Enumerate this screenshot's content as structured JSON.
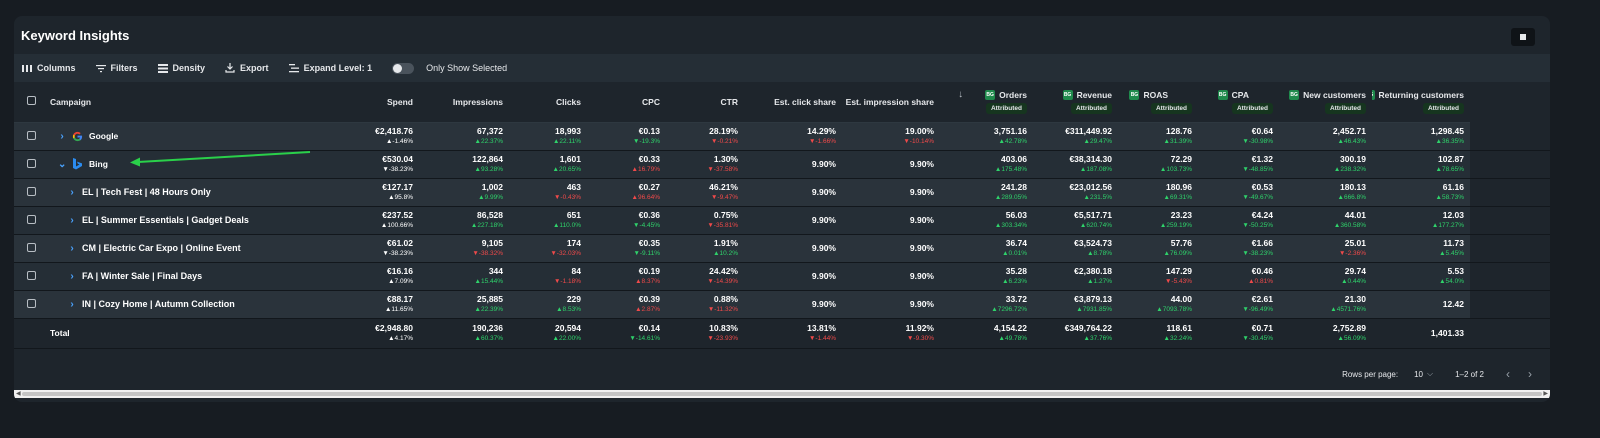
{
  "title": "Keyword Insights",
  "toolbar": {
    "columns": "Columns",
    "filters": "Filters",
    "density": "Density",
    "export": "Export",
    "expand": "Expand Level: 1",
    "only_selected": "Only Show Selected"
  },
  "columns": {
    "campaign": "Campaign",
    "spend": "Spend",
    "impressions": "Impressions",
    "clicks": "Clicks",
    "cpc": "CPC",
    "ctr": "CTR",
    "click_share": "Est. click share",
    "impr_share": "Est. impression share",
    "orders": "Orders",
    "revenue": "Revenue",
    "roas": "ROAS",
    "cpa": "CPA",
    "new_customers": "New customers",
    "returning": "Returning customers",
    "attributed": "Attributed",
    "bg_icon": "BG"
  },
  "rows": [
    {
      "name": "Google",
      "icon": "google-icon",
      "spend": [
        "€2,418.76",
        "▲-1.46%",
        "neutral"
      ],
      "impr": [
        "67,372",
        "▲22.37%",
        "up"
      ],
      "clicks": [
        "18,993",
        "▲22.11%",
        "up"
      ],
      "cpc": [
        "€0.13",
        "▼-19.3%",
        "up"
      ],
      "ctr": [
        "28.19%",
        "▼-0.21%",
        "down"
      ],
      "cs": [
        "14.29%",
        "▼-1.66%",
        "down"
      ],
      "is": [
        "19.00%",
        "▼-10.14%",
        "down"
      ],
      "orders": [
        "3,751.16",
        "▲42.78%",
        "up"
      ],
      "revenue": [
        "€311,449.92",
        "▲29.47%",
        "up"
      ],
      "roas": [
        "128.76",
        "▲31.39%",
        "up"
      ],
      "cpa": [
        "€0.64",
        "▼-30.98%",
        "up"
      ],
      "newc": [
        "2,452.71",
        "▲46.43%",
        "up"
      ],
      "ret": [
        "1,298.45",
        "▲36.35%",
        "up"
      ]
    },
    {
      "name": "Bing",
      "icon": "bing-icon",
      "spend": [
        "€530.04",
        "▼-38.23%",
        "neutral"
      ],
      "impr": [
        "122,864",
        "▲93.28%",
        "up"
      ],
      "clicks": [
        "1,601",
        "▲20.65%",
        "up"
      ],
      "cpc": [
        "€0.33",
        "▲16.79%",
        "down"
      ],
      "ctr": [
        "1.30%",
        "▼-37.58%",
        "down"
      ],
      "cs": [
        "9.90%",
        "",
        "up"
      ],
      "is": [
        "9.90%",
        "",
        "up"
      ],
      "orders": [
        "403.06",
        "▲175.48%",
        "up"
      ],
      "revenue": [
        "€38,314.30",
        "▲187.08%",
        "up"
      ],
      "roas": [
        "72.29",
        "▲103.73%",
        "up"
      ],
      "cpa": [
        "€1.32",
        "▼-48.85%",
        "up"
      ],
      "newc": [
        "300.19",
        "▲238.32%",
        "up"
      ],
      "ret": [
        "102.87",
        "▲78.65%",
        "up"
      ]
    },
    {
      "name": "EL | Tech Fest | 48 Hours Only",
      "spend": [
        "€127.17",
        "▲95.8%",
        "neutral"
      ],
      "impr": [
        "1,002",
        "▲9.99%",
        "up"
      ],
      "clicks": [
        "463",
        "▼-0.43%",
        "down"
      ],
      "cpc": [
        "€0.27",
        "▲96.64%",
        "down"
      ],
      "ctr": [
        "46.21%",
        "▼-9.47%",
        "down"
      ],
      "cs": [
        "9.90%",
        "",
        "up"
      ],
      "is": [
        "9.90%",
        "",
        "up"
      ],
      "orders": [
        "241.28",
        "▲289.05%",
        "up"
      ],
      "revenue": [
        "€23,012.56",
        "▲231.5%",
        "up"
      ],
      "roas": [
        "180.96",
        "▲69.31%",
        "up"
      ],
      "cpa": [
        "€0.53",
        "▼-49.67%",
        "up"
      ],
      "newc": [
        "180.13",
        "▲666.8%",
        "up"
      ],
      "ret": [
        "61.16",
        "▲58.73%",
        "up"
      ]
    },
    {
      "name": "EL | Summer Essentials | Gadget Deals",
      "spend": [
        "€237.52",
        "▲100.66%",
        "neutral"
      ],
      "impr": [
        "86,528",
        "▲227.18%",
        "up"
      ],
      "clicks": [
        "651",
        "▲110.0%",
        "up"
      ],
      "cpc": [
        "€0.36",
        "▼-4.45%",
        "up"
      ],
      "ctr": [
        "0.75%",
        "▼-35.81%",
        "down"
      ],
      "cs": [
        "9.90%",
        "",
        "up"
      ],
      "is": [
        "9.90%",
        "",
        "up"
      ],
      "orders": [
        "56.03",
        "▲303.34%",
        "up"
      ],
      "revenue": [
        "€5,517.71",
        "▲620.74%",
        "up"
      ],
      "roas": [
        "23.23",
        "▲259.19%",
        "up"
      ],
      "cpa": [
        "€4.24",
        "▼-50.25%",
        "up"
      ],
      "newc": [
        "44.01",
        "▲360.58%",
        "up"
      ],
      "ret": [
        "12.03",
        "▲177.27%",
        "up"
      ]
    },
    {
      "name": "CM | Electric Car Expo | Online Event",
      "spend": [
        "€61.02",
        "▼-38.23%",
        "neutral"
      ],
      "impr": [
        "9,105",
        "▼-38.32%",
        "down"
      ],
      "clicks": [
        "174",
        "▼-32.03%",
        "down"
      ],
      "cpc": [
        "€0.35",
        "▼-9.11%",
        "up"
      ],
      "ctr": [
        "1.91%",
        "▲10.2%",
        "up"
      ],
      "cs": [
        "9.90%",
        "",
        "up"
      ],
      "is": [
        "9.90%",
        "",
        "up"
      ],
      "orders": [
        "36.74",
        "▲0.01%",
        "up"
      ],
      "revenue": [
        "€3,524.73",
        "▲8.78%",
        "up"
      ],
      "roas": [
        "57.76",
        "▲76.09%",
        "up"
      ],
      "cpa": [
        "€1.66",
        "▼-38.23%",
        "up"
      ],
      "newc": [
        "25.01",
        "▼-2.36%",
        "down"
      ],
      "ret": [
        "11.73",
        "▲5.45%",
        "up"
      ]
    },
    {
      "name": "FA | Winter Sale | Final Days",
      "spend": [
        "€16.16",
        "▲7.09%",
        "neutral"
      ],
      "impr": [
        "344",
        "▲15.44%",
        "up"
      ],
      "clicks": [
        "84",
        "▼-1.18%",
        "down"
      ],
      "cpc": [
        "€0.19",
        "▲8.37%",
        "down"
      ],
      "ctr": [
        "24.42%",
        "▼-14.39%",
        "down"
      ],
      "cs": [
        "9.90%",
        "",
        "up"
      ],
      "is": [
        "9.90%",
        "",
        "up"
      ],
      "orders": [
        "35.28",
        "▲6.23%",
        "up"
      ],
      "revenue": [
        "€2,380.18",
        "▲1.27%",
        "up"
      ],
      "roas": [
        "147.29",
        "▼-5.43%",
        "down"
      ],
      "cpa": [
        "€0.46",
        "▲0.81%",
        "down"
      ],
      "newc": [
        "29.74",
        "▲0.44%",
        "up"
      ],
      "ret": [
        "5.53",
        "▲54.0%",
        "up"
      ]
    },
    {
      "name": "IN | Cozy Home | Autumn Collection",
      "spend": [
        "€88.17",
        "▲11.65%",
        "neutral"
      ],
      "impr": [
        "25,885",
        "▲22.39%",
        "up"
      ],
      "clicks": [
        "229",
        "▲8.53%",
        "up"
      ],
      "cpc": [
        "€0.39",
        "▲2.87%",
        "down"
      ],
      "ctr": [
        "0.88%",
        "▼-11.32%",
        "down"
      ],
      "cs": [
        "9.90%",
        "",
        "up"
      ],
      "is": [
        "9.90%",
        "",
        "up"
      ],
      "orders": [
        "33.72",
        "▲7296.72%",
        "up"
      ],
      "revenue": [
        "€3,879.13",
        "▲7931.85%",
        "up"
      ],
      "roas": [
        "44.00",
        "▲7093.78%",
        "up"
      ],
      "cpa": [
        "€2.61",
        "▼-96.49%",
        "up"
      ],
      "newc": [
        "21.30",
        "▲4571.76%",
        "up"
      ],
      "ret": [
        "12.42",
        "",
        "up"
      ]
    }
  ],
  "total": {
    "label": "Total",
    "spend": [
      "€2,948.80",
      "▲4.17%",
      "neutral"
    ],
    "impr": [
      "190,236",
      "▲60.37%",
      "up"
    ],
    "clicks": [
      "20,594",
      "▲22.00%",
      "up"
    ],
    "cpc": [
      "€0.14",
      "▼-14.61%",
      "up"
    ],
    "ctr": [
      "10.83%",
      "▼-23.93%",
      "down"
    ],
    "cs": [
      "13.81%",
      "▼-1.44%",
      "down"
    ],
    "is": [
      "11.92%",
      "▼-9.30%",
      "down"
    ],
    "orders": [
      "4,154.22",
      "▲49.78%",
      "up"
    ],
    "revenue": [
      "€349,764.22",
      "▲37.76%",
      "up"
    ],
    "roas": [
      "118.61",
      "▲32.24%",
      "up"
    ],
    "cpa": [
      "€0.71",
      "▼-30.45%",
      "up"
    ],
    "newc": [
      "2,752.89",
      "▲56.09%",
      "up"
    ],
    "ret": [
      "1,401.33",
      "",
      "up"
    ]
  },
  "footer": {
    "rows_per_page_label": "Rows per page:",
    "rows_per_page": "10",
    "range": "1–2 of 2"
  },
  "colors": {
    "up": "#2fd36b",
    "down": "#f04a4a",
    "accent": "#4aa3ff",
    "annotation_arrow": "#2ad04a"
  }
}
